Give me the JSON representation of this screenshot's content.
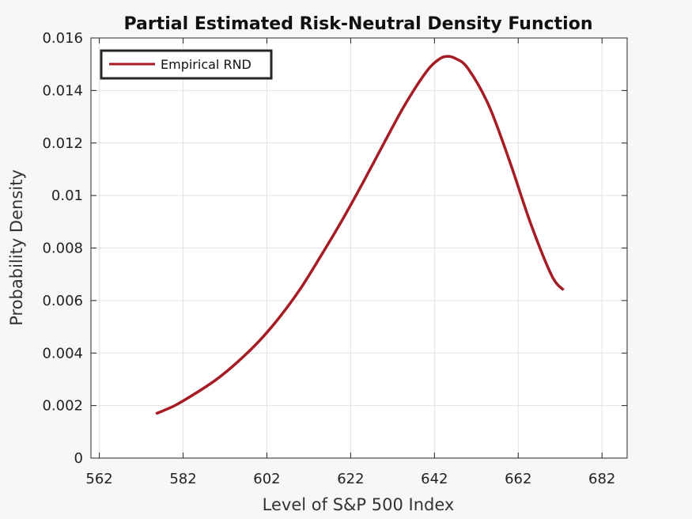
{
  "chart_data": {
    "type": "line",
    "title": "Partial Estimated Risk-Neutral Density Function",
    "xlabel": "Level of S&P 500 Index",
    "ylabel": "Probability Density",
    "xlim": [
      560,
      688
    ],
    "ylim": [
      0,
      0.016
    ],
    "xticks": [
      562,
      582,
      602,
      622,
      642,
      662,
      682
    ],
    "xtick_labels": [
      "562",
      "582",
      "602",
      "622",
      "642",
      "662",
      "682"
    ],
    "yticks": [
      0,
      0.002,
      0.004,
      0.006,
      0.008,
      0.01,
      0.012,
      0.014,
      0.016
    ],
    "ytick_labels": [
      "0",
      "0.002",
      "0.004",
      "0.006",
      "0.008",
      "0.01",
      "0.012",
      "0.014",
      "0.016"
    ],
    "grid": true,
    "legend_position": "top-left",
    "series": [
      {
        "name": "Empirical RND",
        "color": "#a51c24",
        "x": [
          575.5,
          580,
          585,
          590,
          595,
          600,
          605,
          610,
          615,
          620,
          625,
          630,
          635,
          640,
          643,
          645,
          647,
          650,
          655,
          660,
          665,
          670,
          672.8
        ],
        "y": [
          0.00169,
          0.002,
          0.00247,
          0.003,
          0.00366,
          0.00443,
          0.00536,
          0.00645,
          0.00773,
          0.00907,
          0.01051,
          0.01201,
          0.01347,
          0.0147,
          0.01518,
          0.0153,
          0.01522,
          0.01484,
          0.01342,
          0.01128,
          0.00892,
          0.00695,
          0.0064
        ]
      }
    ]
  }
}
